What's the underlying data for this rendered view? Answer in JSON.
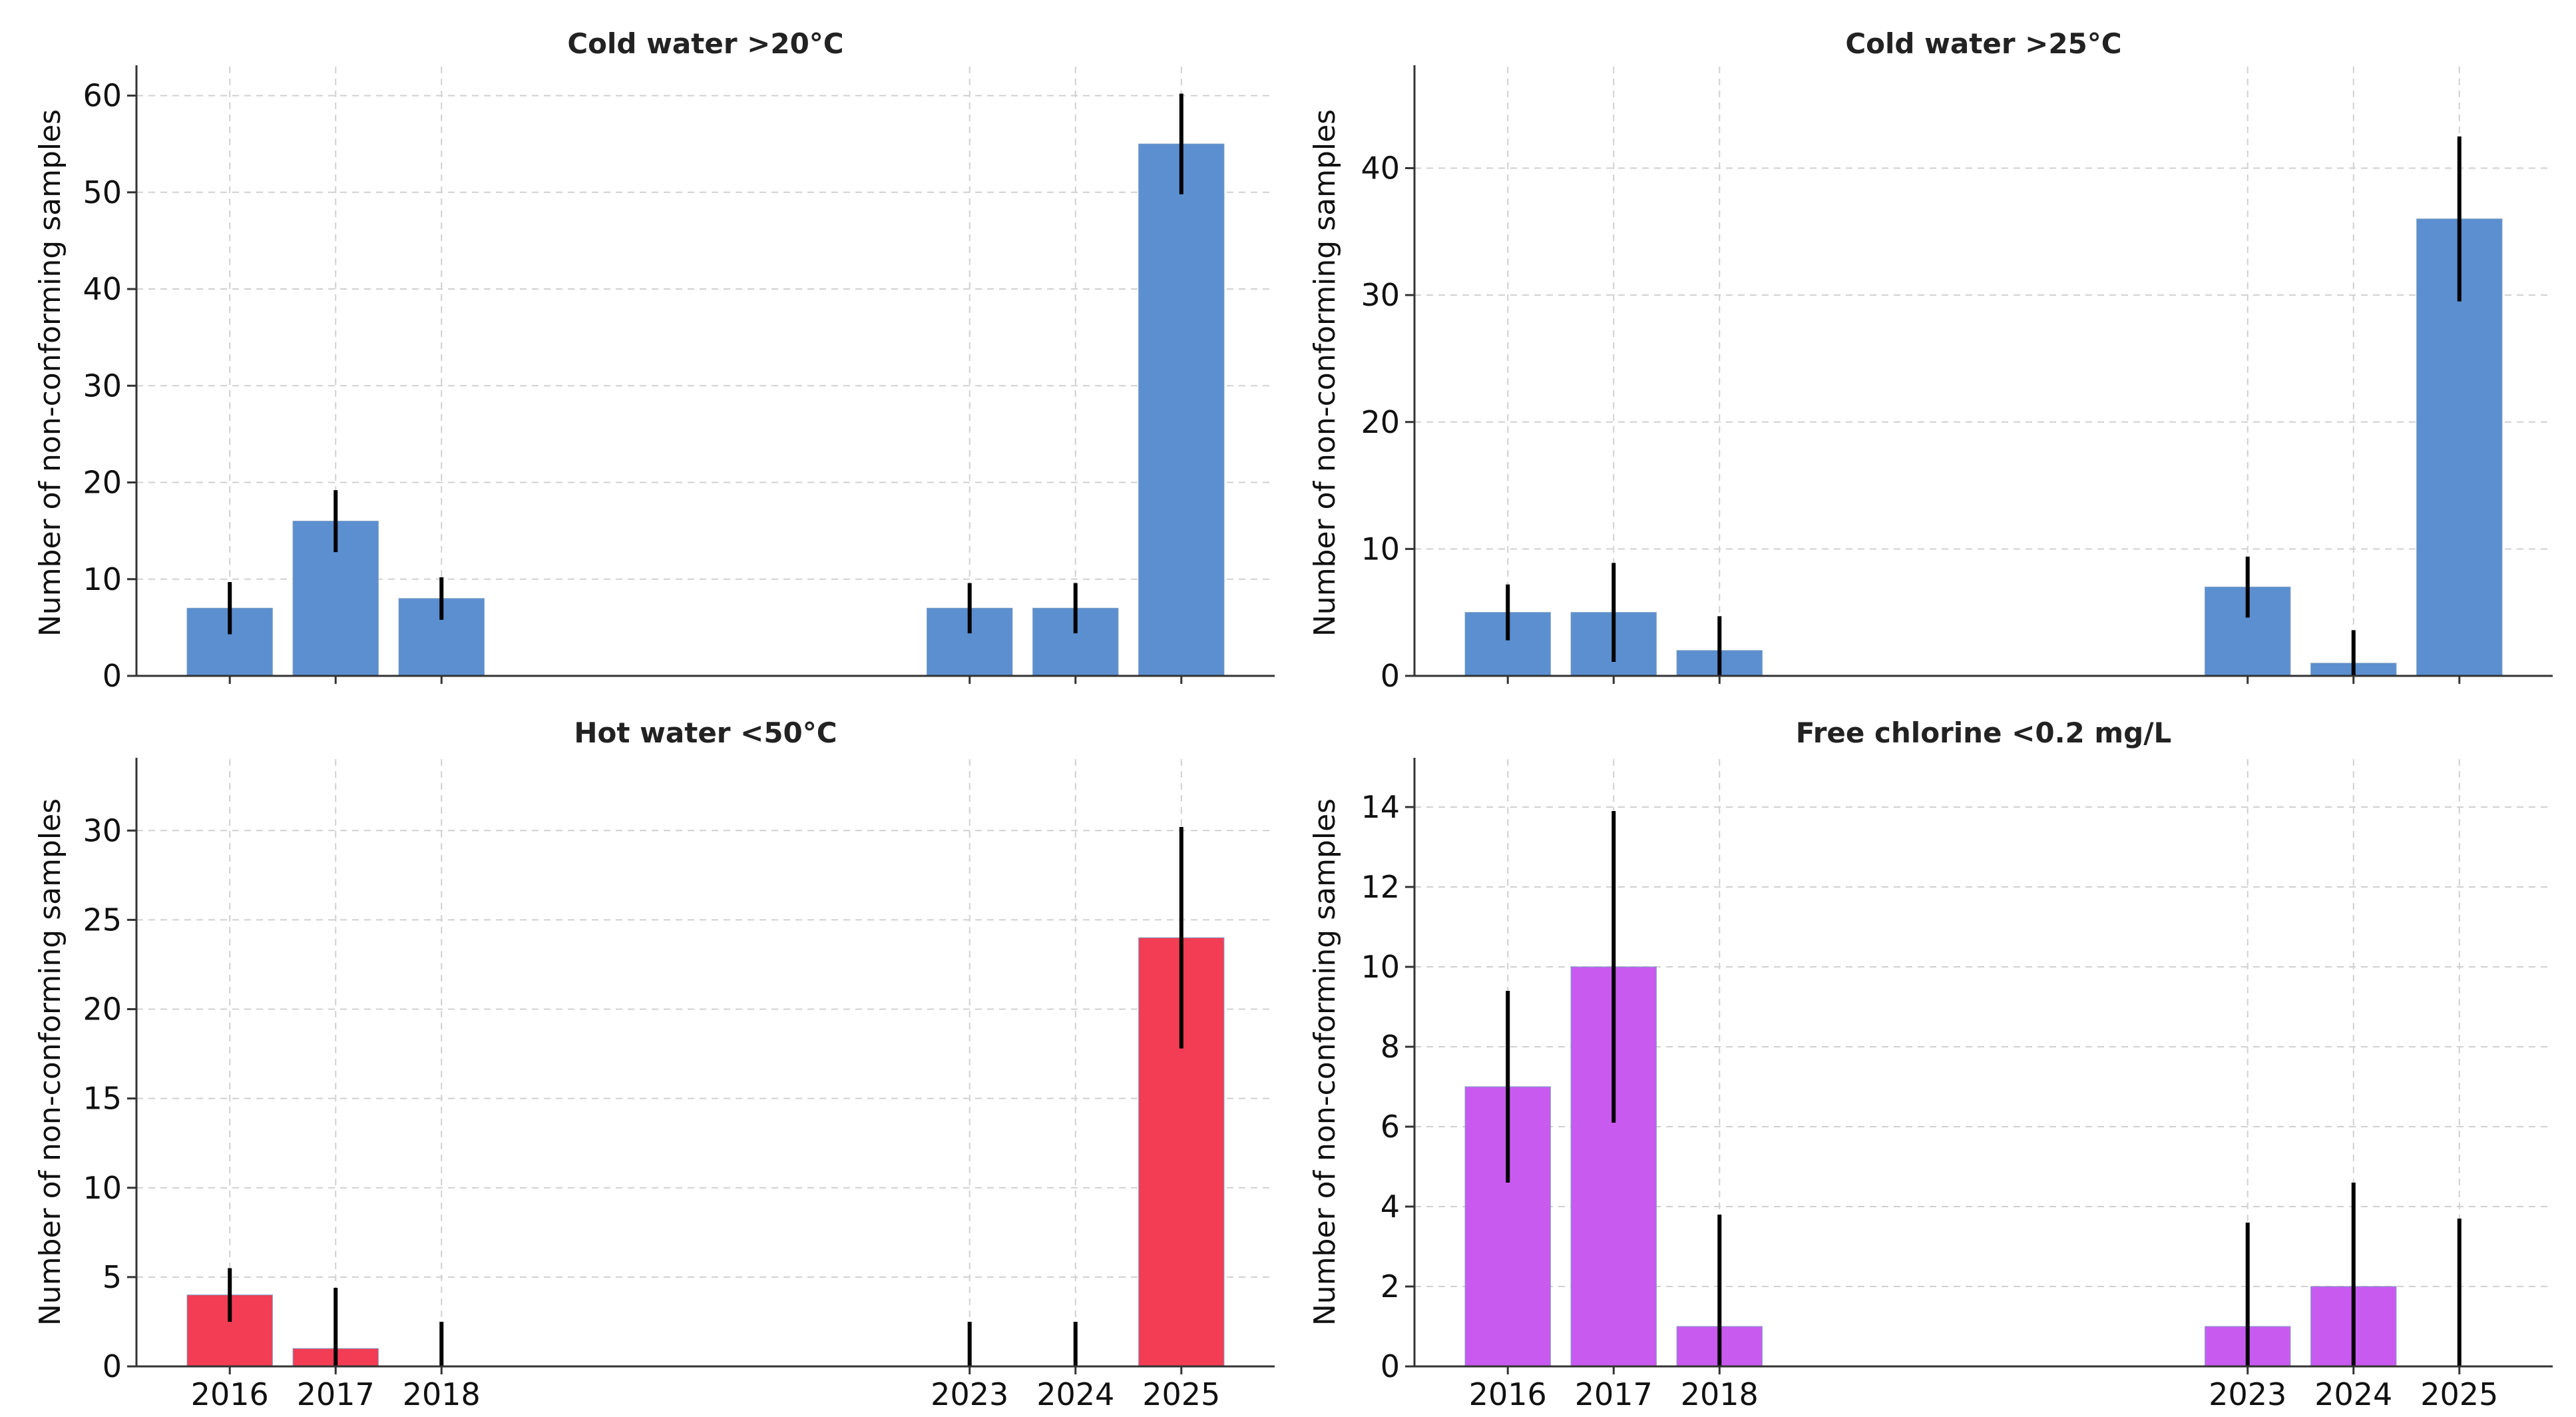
{
  "chart_data": [
    {
      "type": "bar",
      "title": "Cold water >20°C",
      "ylabel": "Number of non-conforming samples",
      "xlabel": "",
      "x": [
        2016,
        2017,
        2018,
        2023,
        2024,
        2025
      ],
      "values": [
        7,
        16,
        8,
        7,
        7,
        55
      ],
      "errors": [
        2.7,
        3.2,
        2.2,
        2.6,
        2.6,
        5.2
      ],
      "ylim": [
        0,
        63
      ],
      "yticks": [
        0,
        10,
        20,
        30,
        40,
        50,
        60
      ],
      "color": "#5b8fd0",
      "show_xticks": false,
      "grid": true
    },
    {
      "type": "bar",
      "title": "Cold water >25°C",
      "ylabel": "Number of non-conforming samples",
      "xlabel": "",
      "x": [
        2016,
        2017,
        2018,
        2023,
        2024,
        2025
      ],
      "values": [
        5,
        5,
        2,
        7,
        1,
        36
      ],
      "errors": [
        2.2,
        3.9,
        2.7,
        2.4,
        2.6,
        6.5
      ],
      "ylim": [
        0,
        48
      ],
      "yticks": [
        0,
        10,
        20,
        30,
        40
      ],
      "color": "#5b8fd0",
      "show_xticks": false,
      "grid": true
    },
    {
      "type": "bar",
      "title": "Hot water <50°C",
      "ylabel": "Number of non-conforming samples",
      "xlabel": "",
      "x": [
        2016,
        2017,
        2018,
        2023,
        2024,
        2025
      ],
      "values": [
        4,
        1,
        0,
        0,
        0,
        24
      ],
      "errors": [
        1.5,
        3.4,
        2.5,
        2.5,
        2.5,
        6.2
      ],
      "ylim": [
        0,
        34
      ],
      "yticks": [
        0,
        5,
        10,
        15,
        20,
        25,
        30
      ],
      "color": "#f23d55",
      "show_xticks": true,
      "grid": true
    },
    {
      "type": "bar",
      "title": "Free chlorine <0.2 mg/L",
      "ylabel": "Number of non-conforming samples",
      "xlabel": "",
      "x": [
        2016,
        2017,
        2018,
        2023,
        2024,
        2025
      ],
      "values": [
        7,
        10,
        1,
        1,
        2,
        0
      ],
      "errors": [
        2.4,
        3.9,
        2.8,
        2.6,
        2.6,
        3.7
      ],
      "ylim": [
        0,
        15.2
      ],
      "yticks": [
        0,
        2,
        4,
        6,
        8,
        10,
        12,
        14
      ],
      "color": "#c95af0",
      "show_xticks": true,
      "grid": true
    }
  ]
}
